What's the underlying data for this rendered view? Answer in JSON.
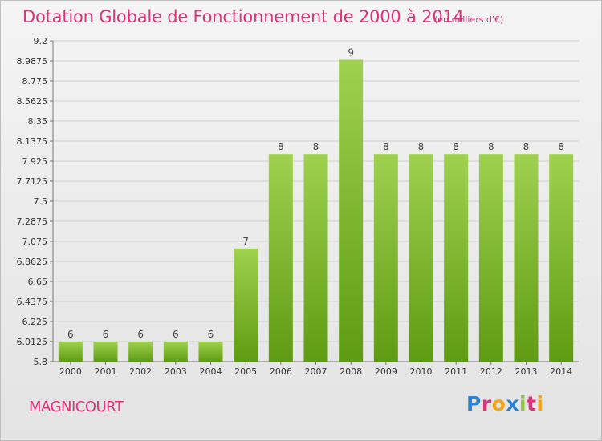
{
  "header": {
    "title": "Dotation Globale de Fonctionnement de 2000 à 2014",
    "unit": "(en milliers d'€)"
  },
  "footer": {
    "town": "MAGNICOURT",
    "logo": "Proxiti",
    "logo_colors": [
      "#2f7fd1",
      "#e0317b",
      "#f2a31c",
      "#2f7fd1",
      "#8dc63f",
      "#e0317b",
      "#f2a31c"
    ]
  },
  "colors": {
    "bar_light": "#9fd14f",
    "bar_dark": "#5f9b12",
    "grid": "#d0d0d0",
    "accent": "#e0317b"
  },
  "chart_data": {
    "type": "bar",
    "title": "Dotation Globale de Fonctionnement de 2000 à 2014",
    "subtitle": "(en milliers d'€)",
    "categories": [
      "2000",
      "2001",
      "2002",
      "2003",
      "2004",
      "2005",
      "2006",
      "2007",
      "2008",
      "2009",
      "2010",
      "2011",
      "2012",
      "2013",
      "2014"
    ],
    "values": [
      6,
      6,
      6,
      6,
      6,
      7,
      8,
      8,
      9,
      8,
      8,
      8,
      8,
      8,
      8
    ],
    "plot_values": [
      6.0125,
      6.0125,
      6.0125,
      6.0125,
      6.0125,
      7.0,
      8.0,
      8.0,
      9.0,
      8.0,
      8.0,
      8.0,
      8.0,
      8.0,
      8.0
    ],
    "data_labels": [
      "6",
      "6",
      "6",
      "6",
      "6",
      "7",
      "8",
      "8",
      "9",
      "8",
      "8",
      "8",
      "8",
      "8",
      "8"
    ],
    "yticks": [
      "5.8",
      "6.0125",
      "6.225",
      "6.4375",
      "6.65",
      "6.8625",
      "7.075",
      "7.2875",
      "7.5",
      "7.7125",
      "7.925",
      "8.1375",
      "8.35",
      "8.5625",
      "8.775",
      "8.9875",
      "9.2"
    ],
    "ylim": [
      5.8,
      9.2
    ],
    "xlabel": "",
    "ylabel": "",
    "grid": true,
    "legend": "none"
  }
}
